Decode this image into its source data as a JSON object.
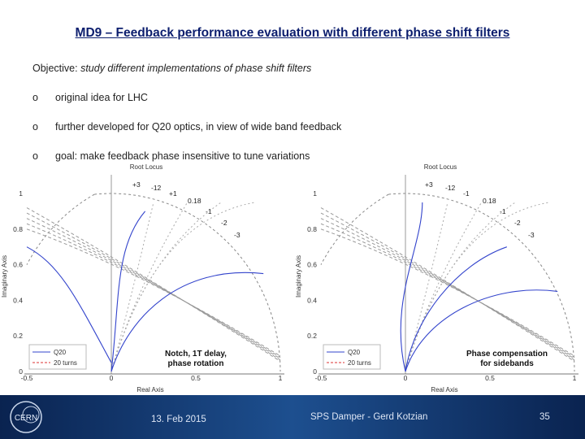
{
  "header": {
    "title": "MD9 – Feedback performance evaluation with different phase shift filters"
  },
  "objective": {
    "label": "Objective:",
    "text": "study different implementations of phase shift filters"
  },
  "bullets": [
    {
      "marker": "o",
      "text": "original idea for LHC"
    },
    {
      "marker": "o",
      "text": "further developed for Q20 optics, in view of wide band feedback"
    },
    {
      "marker": "o",
      "text": "goal: make feedback phase insensitive to tune variations"
    }
  ],
  "plots": [
    {
      "title": "Root Locus",
      "ylabel": "Imaginary Axis",
      "xlabel": "Real Axis",
      "yticks": [
        "1",
        "0.8",
        "0.6",
        "0.4",
        "0.2",
        "0"
      ],
      "xticks": [
        "-0.5",
        "0",
        "0.5",
        "1"
      ],
      "annotations": [
        "+3",
        "-12",
        "+1",
        "0.18",
        "-1",
        "-2",
        "-3"
      ],
      "legend": [
        "Q20",
        "20 turns"
      ],
      "caption": [
        "Notch, 1T delay,",
        "phase rotation"
      ]
    },
    {
      "title": "Root Locus",
      "ylabel": "Imaginary Axis",
      "xlabel": "Real Axis",
      "yticks": [
        "1",
        "0.8",
        "0.6",
        "0.4",
        "0.2",
        "0"
      ],
      "xticks": [
        "-0.5",
        "0",
        "0.5",
        "1"
      ],
      "annotations": [
        "+3",
        "-12",
        "-1",
        "0.18",
        "-1",
        "-2",
        "-3"
      ],
      "legend": [
        "Q20",
        "20 turns"
      ],
      "caption": [
        "Phase compensation",
        "for sidebands"
      ]
    }
  ],
  "footer": {
    "date": "13. Feb 2015",
    "author": "SPS Damper - Gerd Kotzian",
    "page": "35",
    "logo": "CERN"
  }
}
